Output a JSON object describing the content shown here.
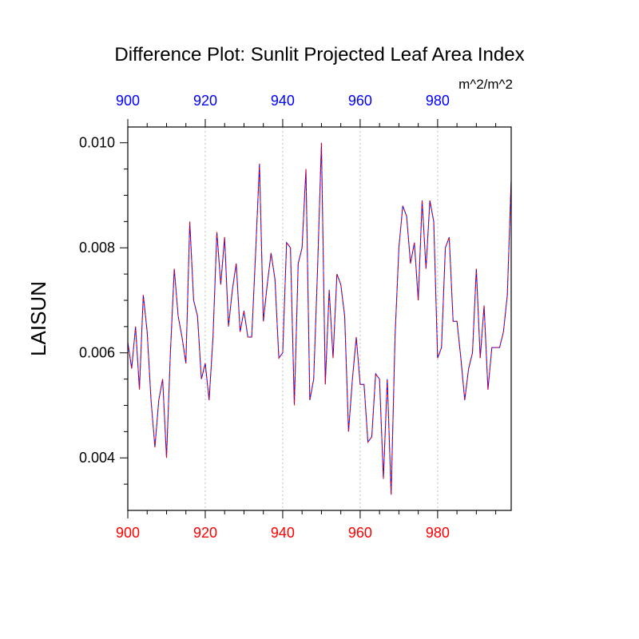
{
  "chart_data": {
    "type": "line",
    "title": "Difference Plot: Sunlit Projected Leaf Area Index",
    "units": "m^2/m^2",
    "ylabel": "LAISUN",
    "xlim": [
      900,
      999
    ],
    "ylim": [
      0.003,
      0.0103
    ],
    "x_ticks": [
      900,
      920,
      940,
      960,
      980
    ],
    "x_tick_labels": [
      "900",
      "920",
      "940",
      "960",
      "980"
    ],
    "y_ticks": [
      0.004,
      0.006,
      0.008,
      0.01
    ],
    "y_tick_labels": [
      "0.004",
      "0.006",
      "0.008",
      "0.010"
    ],
    "bottom_axis_color": "#ff0000",
    "top_axis_color": "#0000ff",
    "grid": "vertical dotted at major x ticks",
    "series": [
      {
        "color_a": "#0000ff",
        "color_b": "#ff0000",
        "x": [
          900,
          901,
          902,
          903,
          904,
          905,
          906,
          907,
          908,
          909,
          910,
          911,
          912,
          913,
          914,
          915,
          916,
          917,
          918,
          919,
          920,
          921,
          922,
          923,
          924,
          925,
          926,
          927,
          928,
          929,
          930,
          931,
          932,
          933,
          934,
          935,
          936,
          937,
          938,
          939,
          940,
          941,
          942,
          943,
          944,
          945,
          946,
          947,
          948,
          949,
          950,
          951,
          952,
          953,
          954,
          955,
          956,
          957,
          958,
          959,
          960,
          961,
          962,
          963,
          964,
          965,
          966,
          967,
          968,
          969,
          970,
          971,
          972,
          973,
          974,
          975,
          976,
          977,
          978,
          979,
          980,
          981,
          982,
          983,
          984,
          985,
          986,
          987,
          988,
          989,
          990,
          991,
          992,
          993,
          994,
          995,
          996,
          997,
          998,
          999
        ],
        "values": [
          0.0062,
          0.0057,
          0.0065,
          0.0053,
          0.0071,
          0.0064,
          0.0051,
          0.0042,
          0.0051,
          0.0055,
          0.004,
          0.006,
          0.0076,
          0.0067,
          0.0063,
          0.0058,
          0.0085,
          0.007,
          0.0067,
          0.0055,
          0.0058,
          0.0051,
          0.0063,
          0.0083,
          0.0073,
          0.0082,
          0.0065,
          0.0072,
          0.0077,
          0.0064,
          0.0068,
          0.0063,
          0.0063,
          0.0079,
          0.0096,
          0.0066,
          0.0073,
          0.0079,
          0.0074,
          0.0059,
          0.006,
          0.0081,
          0.008,
          0.005,
          0.0077,
          0.008,
          0.0095,
          0.0051,
          0.0055,
          0.0076,
          0.01,
          0.0054,
          0.0072,
          0.0059,
          0.0075,
          0.0073,
          0.0067,
          0.0045,
          0.0055,
          0.0063,
          0.0054,
          0.0054,
          0.0043,
          0.0044,
          0.0056,
          0.0055,
          0.0036,
          0.0055,
          0.0033,
          0.0063,
          0.008,
          0.0088,
          0.0086,
          0.0077,
          0.0081,
          0.007,
          0.0089,
          0.0076,
          0.0089,
          0.0085,
          0.0059,
          0.0061,
          0.008,
          0.0082,
          0.0066,
          0.0066,
          0.0059,
          0.0051,
          0.0057,
          0.006,
          0.0076,
          0.0059,
          0.0069,
          0.0053,
          0.0061,
          0.0061,
          0.0061,
          0.0064,
          0.0071,
          0.0093
        ]
      }
    ]
  }
}
